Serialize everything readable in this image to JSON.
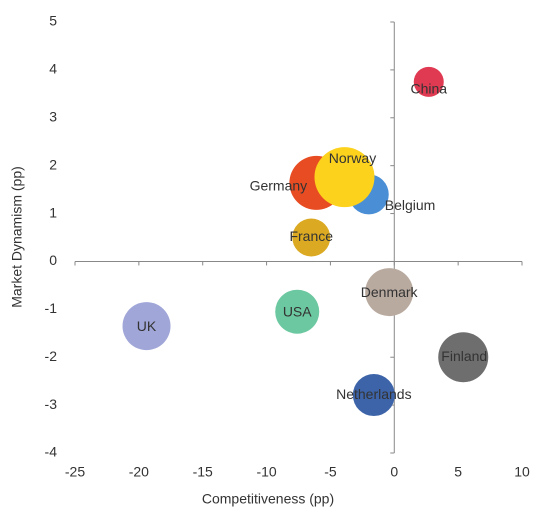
{
  "chart_data": {
    "type": "bubble",
    "xlabel": "Competitiveness (pp)",
    "ylabel": "Market Dynamism (pp)",
    "xlim": [
      -25,
      10
    ],
    "xticks": [
      -25,
      -20,
      -15,
      -10,
      -5,
      0,
      5,
      10
    ],
    "ylim": [
      -4,
      5
    ],
    "yticks": [
      -4,
      -3,
      -2,
      -1,
      0,
      1,
      2,
      3,
      4,
      5
    ],
    "labels": [
      "China",
      "Belgium",
      "Germany",
      "Norway",
      "France",
      "Denmark",
      "USA",
      "UK",
      "Finland",
      "Netherlands"
    ],
    "x": [
      2.7,
      -2.0,
      -6.1,
      -3.9,
      -6.5,
      -0.4,
      -7.6,
      -19.4,
      5.4,
      -1.6
    ],
    "y": [
      3.75,
      1.4,
      1.64,
      1.76,
      0.5,
      -0.64,
      -1.05,
      -1.35,
      -2.0,
      -2.79
    ],
    "sizes": [
      15,
      20,
      27,
      30,
      19,
      24,
      22,
      24,
      25,
      21
    ],
    "colors": [
      "#e03a52",
      "#4a8fd6",
      "#e84c22",
      "#fcd21c",
      "#dbaa22",
      "#b9aaa0",
      "#6cc8a0",
      "#a0a6d8",
      "#6e6e6e",
      "#3d64a8"
    ]
  }
}
